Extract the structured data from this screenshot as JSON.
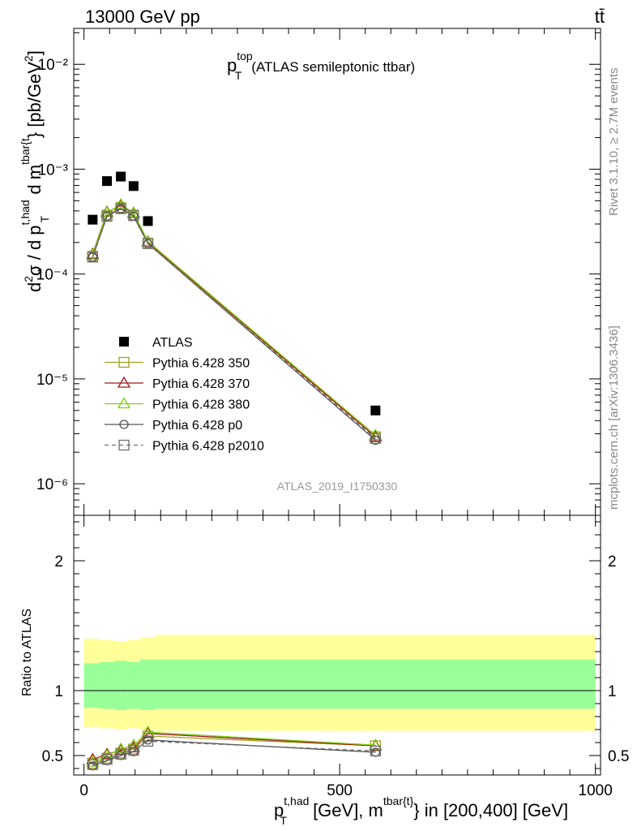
{
  "header": {
    "left": "13000 GeV pp",
    "right": "tt̄"
  },
  "side": {
    "rivet": "Rivet 3.1.10, ≥ 2.7M events",
    "mcplots": "mcplots.cern.ch [arXiv:1306.3436]"
  },
  "chart_data": [
    {
      "type": "line",
      "title_main": "p",
      "title_sup": "top",
      "title_sub": "T",
      "title_rest": "(ATLAS semileptonic ttbar)",
      "ylabel": "d²σ / d p_T^{t,had} d m^{tbar{t}} [pb/GeV²]",
      "yscale": "log",
      "ylim": [
        5e-07,
        0.022
      ],
      "xlim": [
        -20,
        1010
      ],
      "analysis_tag": "ATLAS_2019_I1750330",
      "legend_position": "center-left",
      "y_tick_labels": [
        "10⁻²",
        "10⁻³",
        "10⁻⁴",
        "10⁻⁵",
        "10⁻⁶"
      ],
      "series": [
        {
          "name": "ATLAS",
          "color": "#000000",
          "marker": "filled-square",
          "x": [
            17,
            45,
            72,
            97,
            125,
            570
          ],
          "y": [
            0.00033,
            0.00077,
            0.00085,
            0.00069,
            0.00032,
            5e-06
          ]
        },
        {
          "name": "Pythia 6.428 350",
          "color": "#a0a020",
          "marker": "open-square",
          "x": [
            17,
            45,
            72,
            97,
            125,
            570
          ],
          "y": [
            0.000148,
            0.000365,
            0.00043,
            0.000365,
            0.000197,
            2.8e-06
          ]
        },
        {
          "name": "Pythia 6.428 370",
          "color": "#a01818",
          "marker": "open-triangle",
          "x": [
            17,
            45,
            72,
            97,
            125,
            570
          ],
          "y": [
            0.000155,
            0.00039,
            0.00045,
            0.00038,
            0.000203,
            2.8e-06
          ]
        },
        {
          "name": "Pythia 6.428 380",
          "color": "#80d010",
          "marker": "open-triangle",
          "x": [
            17,
            45,
            72,
            97,
            125,
            570
          ],
          "y": [
            0.000152,
            0.000385,
            0.00046,
            0.000385,
            0.000205,
            2.9e-06
          ]
        },
        {
          "name": "Pythia 6.428 p0",
          "color": "#505050",
          "marker": "open-circle",
          "x": [
            17,
            45,
            72,
            97,
            125,
            570
          ],
          "y": [
            0.000145,
            0.000355,
            0.00042,
            0.000355,
            0.000195,
            2.6e-06
          ]
        },
        {
          "name": "Pythia 6.428 p2010",
          "color": "#707070",
          "marker": "open-square",
          "dashed": true,
          "x": [
            17,
            45,
            72,
            97,
            125,
            570
          ],
          "y": [
            0.000145,
            0.000355,
            0.00042,
            0.00036,
            0.000195,
            2.7e-06
          ]
        }
      ]
    },
    {
      "type": "line",
      "ylabel": "Ratio to ATLAS",
      "xlabel_main": "p",
      "xlabel_sup": "t,had",
      "xlabel_sub": "T",
      "xlabel_mid": " [GeV], m",
      "xlabel_sup2": "tbar{t}",
      "xlabel_rest": "} in [200,400] [GeV]",
      "xlim": [
        -20,
        1010
      ],
      "ylim": [
        0.35,
        2.35
      ],
      "x_ticks": [
        0,
        500,
        1000
      ],
      "x_tick_labels": [
        "0",
        "500",
        "1000"
      ],
      "y_ticks": [
        0.5,
        1,
        2
      ],
      "y_tick_labels": [
        "0.5",
        "1",
        "2"
      ],
      "bands": {
        "edges": [
          0,
          30,
          60,
          85,
          110,
          140,
          1000
        ],
        "yellow_lo": [
          0.72,
          0.71,
          0.7,
          0.71,
          0.7,
          0.69
        ],
        "yellow_hi": [
          1.4,
          1.39,
          1.38,
          1.39,
          1.41,
          1.43
        ],
        "green_lo": [
          0.87,
          0.86,
          0.85,
          0.86,
          0.85,
          0.86
        ],
        "green_hi": [
          1.21,
          1.22,
          1.23,
          1.22,
          1.24,
          1.24
        ]
      },
      "series": [
        {
          "name": "Pythia 6.428 350",
          "color": "#a0a020",
          "marker": "open-square",
          "x": [
            17,
            45,
            72,
            97,
            125,
            570
          ],
          "y": [
            0.44,
            0.48,
            0.52,
            0.55,
            0.65,
            0.575
          ]
        },
        {
          "name": "Pythia 6.428 370",
          "color": "#a01818",
          "marker": "open-triangle",
          "x": [
            17,
            45,
            72,
            97,
            125,
            570
          ],
          "y": [
            0.47,
            0.51,
            0.54,
            0.56,
            0.67,
            0.575
          ]
        },
        {
          "name": "Pythia 6.428 380",
          "color": "#80d010",
          "marker": "open-triangle",
          "x": [
            17,
            45,
            72,
            97,
            125,
            570
          ],
          "y": [
            0.45,
            0.5,
            0.55,
            0.58,
            0.68,
            0.58
          ]
        },
        {
          "name": "Pythia 6.428 p0",
          "color": "#505050",
          "marker": "open-circle",
          "x": [
            17,
            45,
            72,
            97,
            125,
            570
          ],
          "y": [
            0.42,
            0.46,
            0.5,
            0.53,
            0.62,
            0.525
          ]
        },
        {
          "name": "Pythia 6.428 p2010",
          "color": "#707070",
          "marker": "open-square",
          "dashed": true,
          "x": [
            17,
            45,
            72,
            97,
            125,
            570
          ],
          "y": [
            0.43,
            0.47,
            0.51,
            0.54,
            0.61,
            0.535
          ]
        }
      ]
    }
  ]
}
